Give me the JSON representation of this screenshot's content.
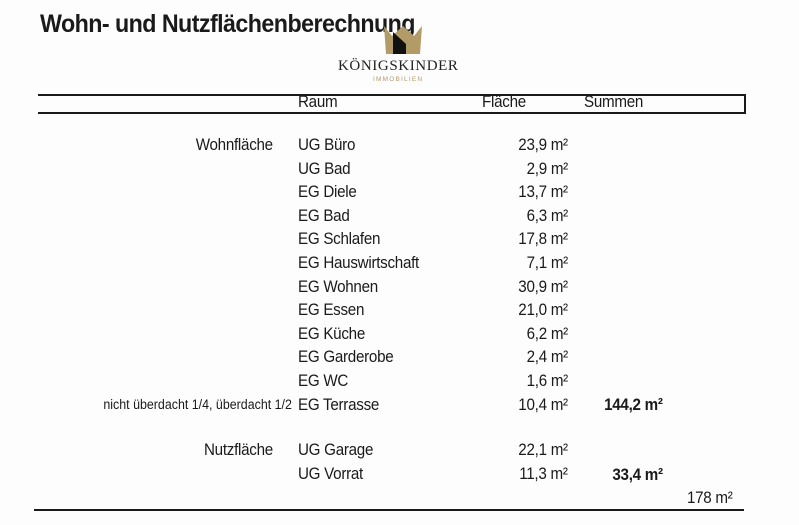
{
  "title": "Wohn- und Nutzflächenberechnung",
  "logo": {
    "name": "KÖNIGSKINDER",
    "sub": "IMMOBILIEN",
    "gold": "#b39b68"
  },
  "header": {
    "room": "Raum",
    "area": "Fläche",
    "sums": "Summen"
  },
  "wohnflaeche": {
    "label": "Wohnfläche",
    "rows": [
      {
        "room": "UG Büro",
        "area": "23,9 m²"
      },
      {
        "room": "UG Bad",
        "area": "2,9 m²"
      },
      {
        "room": "EG Diele",
        "area": "13,7 m²"
      },
      {
        "room": "EG Bad",
        "area": "6,3 m²"
      },
      {
        "room": "EG Schlafen",
        "area": "17,8 m²"
      },
      {
        "room": "EG Hauswirtschaft",
        "area": "7,1 m²"
      },
      {
        "room": "EG Wohnen",
        "area": "30,9 m²"
      },
      {
        "room": "EG Essen",
        "area": "21,0 m²"
      },
      {
        "room": "EG Küche",
        "area": "6,2 m²"
      },
      {
        "room": "EG Garderobe",
        "area": "2,4 m²"
      },
      {
        "room": "EG WC",
        "area": "1,6 m²"
      },
      {
        "room": "EG Terrasse",
        "area": "10,4 m²",
        "note": "nicht überdacht 1/4, überdacht 1/2"
      }
    ],
    "sum": "144,2 m²"
  },
  "nutzflaeche": {
    "label": "Nutzfläche",
    "rows": [
      {
        "room": "UG Garage",
        "area": "22,1 m²"
      },
      {
        "room": "UG Vorrat",
        "area": "11,3 m²"
      }
    ],
    "sum": "33,4 m²"
  },
  "total": "178 m²"
}
